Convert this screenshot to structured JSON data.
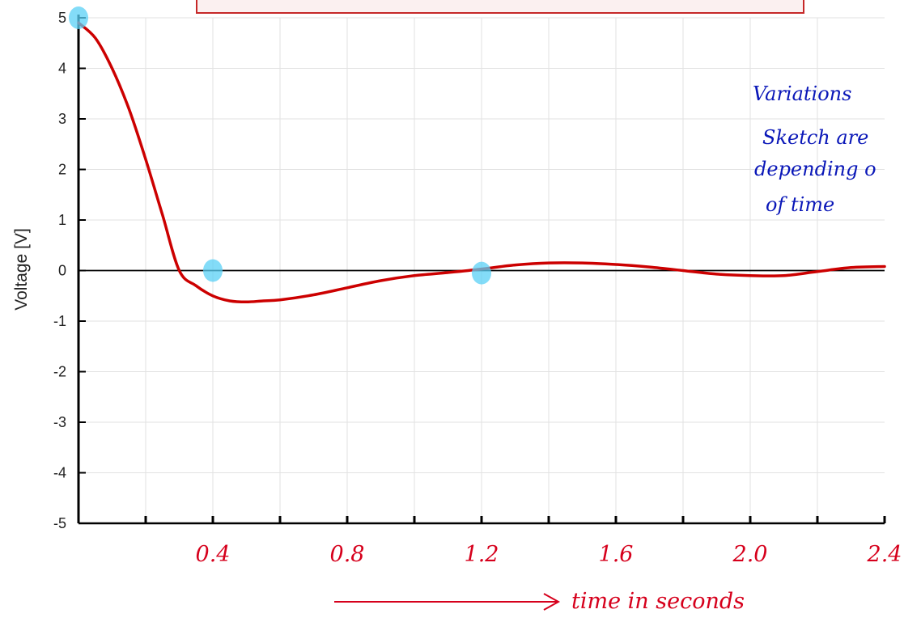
{
  "chart_data": {
    "type": "line",
    "ylabel": "Voltage [V]",
    "xlabel": "time in seconds",
    "ylim": [
      -5,
      5
    ],
    "xlim": [
      0,
      2.4
    ],
    "yticks": [
      "5",
      "4",
      "3",
      "2",
      "1",
      "0",
      "-1",
      "-2",
      "-3",
      "-4",
      "-5"
    ],
    "xticks": [
      "0.4",
      "0.8",
      "1.2",
      "1.6",
      "2.0",
      "2.4"
    ],
    "grid": true,
    "series": [
      {
        "color": "#cc0000",
        "x": [
          0,
          0.05,
          0.1,
          0.15,
          0.2,
          0.25,
          0.3,
          0.35,
          0.4,
          0.45,
          0.5,
          0.55,
          0.6,
          0.7,
          0.8,
          0.9,
          1.0,
          1.1,
          1.2,
          1.3,
          1.4,
          1.5,
          1.6,
          1.7,
          1.8,
          1.9,
          2.0,
          2.1,
          2.2,
          2.3,
          2.4
        ],
        "y": [
          4.9,
          4.6,
          4.0,
          3.2,
          2.2,
          1.1,
          0.0,
          -0.3,
          -0.5,
          -0.6,
          -0.62,
          -0.6,
          -0.58,
          -0.48,
          -0.34,
          -0.2,
          -0.1,
          -0.04,
          0.03,
          0.11,
          0.15,
          0.15,
          0.12,
          0.07,
          0.0,
          -0.07,
          -0.1,
          -0.1,
          -0.02,
          0.06,
          0.08
        ]
      }
    ],
    "highlighted_points": [
      {
        "x": 0,
        "y": 5
      },
      {
        "x": 0.4,
        "y": 0
      },
      {
        "x": 1.2,
        "y": -0.05
      }
    ],
    "annotation": {
      "lines": [
        "Variations",
        "Sketch are",
        "depending o",
        "of time"
      ],
      "color": "#0a17b8"
    },
    "hand_color": "#d6001c"
  }
}
